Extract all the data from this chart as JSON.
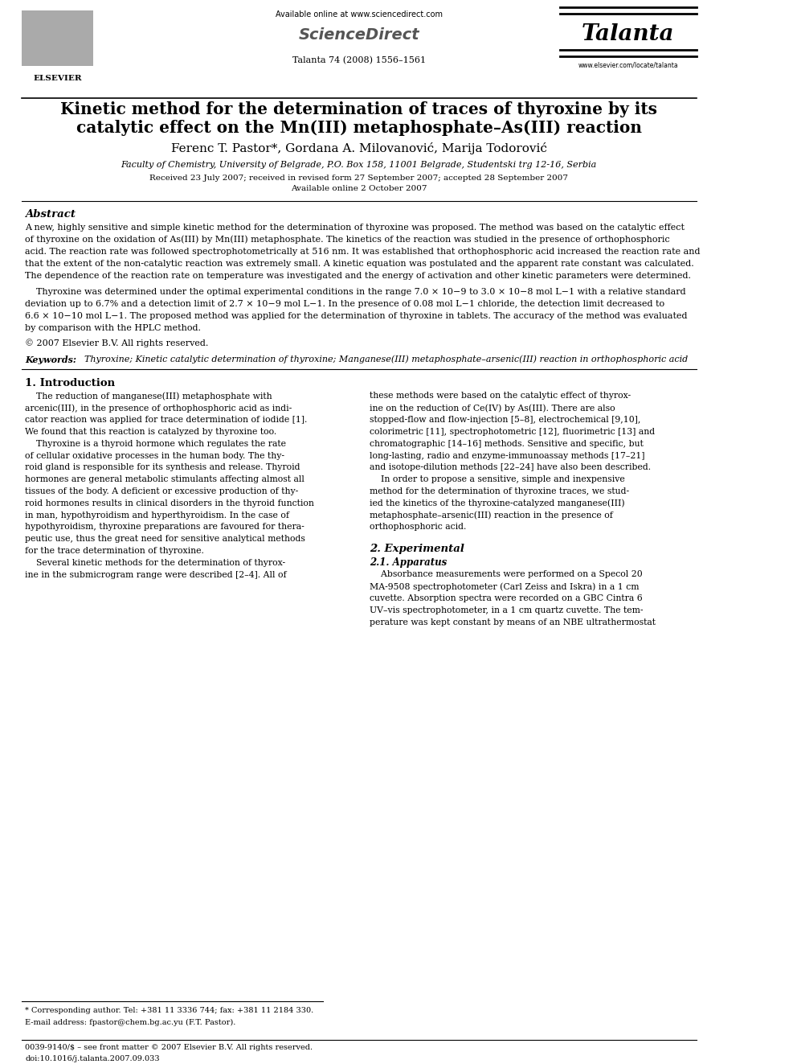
{
  "bg_color": "#ffffff",
  "title_line1": "Kinetic method for the determination of traces of thyroxine by its",
  "title_line2": "catalytic effect on the Mn(III) metaphosphate–As(III) reaction",
  "authors": "Ferenc T. Pastor*, Gordana A. Milovanović, Marija Todorović",
  "affiliation": "Faculty of Chemistry, University of Belgrade, P.O. Box 158, 11001 Belgrade, Studentski trg 12-16, Serbia",
  "received": "Received 23 July 2007; received in revised form 27 September 2007; accepted 28 September 2007",
  "online": "Available online 2 October 2007",
  "journal_ref": "Talanta 74 (2008) 1556–1561",
  "available_online_header": "Available online at www.sciencedirect.com",
  "elsevier_text": "ELSEVIER",
  "talanta_text": "Talanta",
  "website": "www.elsevier.com/locate/talanta",
  "abstract_title": "Abstract",
  "abstract_para1": "A new, highly sensitive and simple kinetic method for the determination of thyroxine was proposed. The method was based on the catalytic effect\nof thyroxine on the oxidation of As(III) by Mn(III) metaphosphate. The kinetics of the reaction was studied in the presence of orthophosphoric\nacid. The reaction rate was followed spectrophotometrically at 516 nm. It was established that orthophosphoric acid increased the reaction rate and\nthat the extent of the non-catalytic reaction was extremely small. A kinetic equation was postulated and the apparent rate constant was calculated.\nThe dependence of the reaction rate on temperature was investigated and the energy of activation and other kinetic parameters were determined.",
  "abstract_para2": "    Thyroxine was determined under the optimal experimental conditions in the range 7.0 × 10−9 to 3.0 × 10−8 mol L−1 with a relative standard\ndeviation up to 6.7% and a detection limit of 2.7 × 10−9 mol L−1. In the presence of 0.08 mol L−1 chloride, the detection limit decreased to\n6.6 × 10−10 mol L−1. The proposed method was applied for the determination of thyroxine in tablets. The accuracy of the method was evaluated\nby comparison with the HPLC method.",
  "copyright": "© 2007 Elsevier B.V. All rights reserved.",
  "keywords_label": "Keywords:",
  "keywords_text": "  Thyroxine; Kinetic catalytic determination of thyroxine; Manganese(III) metaphosphate–arsenic(III) reaction in orthophosphoric acid",
  "section1_title": "1. Introduction",
  "section1_col1": "    The reduction of manganese(III) metaphosphate with\narcenic(III), in the presence of orthophosphoric acid as indi-\ncator reaction was applied for trace determination of iodide [1].\nWe found that this reaction is catalyzed by thyroxine too.\n    Thyroxine is a thyroid hormone which regulates the rate\nof cellular oxidative processes in the human body. The thy-\nroid gland is responsible for its synthesis and release. Thyroid\nhormones are general metabolic stimulants affecting almost all\ntissues of the body. A deficient or excessive production of thy-\nroid hormones results in clinical disorders in the thyroid function\nin man, hypothyroidism and hyperthyroidism. In the case of\nhypothyroidism, thyroxine preparations are favoured for thera-\npeutic use, thus the great need for sensitive analytical methods\nfor the trace determination of thyroxine.\n    Several kinetic methods for the determination of thyrox-\nine in the submicrogram range were described [2–4]. All of",
  "section1_col2": "these methods were based on the catalytic effect of thyrox-\nine on the reduction of Ce(IV) by As(III). There are also\nstopped-flow and flow-injection [5–8], electrochemical [9,10],\ncolorimetric [11], spectrophotometric [12], fluorimetric [13] and\nchromatographic [14–16] methods. Sensitive and specific, but\nlong-lasting, radio and enzyme-immunoassay methods [17–21]\nand isotope-dilution methods [22–24] have also been described.\n    In order to propose a sensitive, simple and inexpensive\nmethod for the determination of thyroxine traces, we stud-\nied the kinetics of the thyroxine-catalyzed manganese(III)\nmetaphosphate–arsenic(III) reaction in the presence of\northophosphoric acid.",
  "section2_title": "2. Experimental",
  "section21_title": "2.1. Apparatus",
  "section21_text": "    Absorbance measurements were performed on a Specol 20\nMA-9508 spectrophotometer (Carl Zeiss and Iskra) in a 1 cm\ncuvette. Absorption spectra were recorded on a GBC Cintra 6\nUV–vis spectrophotometer, in a 1 cm quartz cuvette. The tem-\nperature was kept constant by means of an NBE ultrathermostat",
  "footnote_star": "* Corresponding author. Tel: +381 11 3336 744; fax: +381 11 2184 330.",
  "footnote_email": "E-mail address: fpastor@chem.bg.ac.yu (F.T. Pastor).",
  "footnote_issn": "0039-9140/$ – see front matter © 2007 Elsevier B.V. All rights reserved.",
  "footnote_doi": "doi:10.1016/j.talanta.2007.09.033"
}
